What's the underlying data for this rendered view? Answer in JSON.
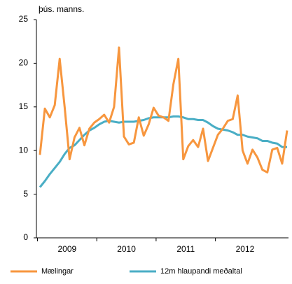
{
  "chart_data": {
    "type": "line",
    "y_label": "þús. manns.",
    "categories": [
      null,
      null,
      null,
      null,
      null,
      "2009",
      null,
      null,
      null,
      null,
      null,
      null,
      null,
      null,
      null,
      null,
      null,
      "2010",
      null,
      null,
      null,
      null,
      null,
      null,
      null,
      null,
      null,
      null,
      null,
      "2011",
      null,
      null,
      null,
      null,
      null,
      null,
      null,
      null,
      null,
      null,
      null,
      "2012",
      null,
      null,
      null,
      null,
      null,
      null,
      null,
      null,
      null
    ],
    "series": [
      {
        "name": "Mælingar",
        "color": "#f7963e",
        "values": [
          9.5,
          14.8,
          13.8,
          15.2,
          20.5,
          15,
          9,
          11.5,
          12.6,
          10.6,
          12.5,
          13.2,
          13.6,
          14.1,
          13.2,
          15,
          21.8,
          11.6,
          10.7,
          10.9,
          13.8,
          11.7,
          13,
          14.9,
          14,
          13.8,
          13.4,
          17.6,
          20.5,
          9,
          10.5,
          11.2,
          10.4,
          12.5,
          8.8,
          10.3,
          11.8,
          12.5,
          13.4,
          13.6,
          16.3,
          10,
          8.5,
          10.1,
          9.2,
          7.8,
          7.5,
          10.1,
          10.3,
          8.5,
          12.3
        ]
      },
      {
        "name": "12m hlaupandi meðaltal",
        "color": "#4aaec5",
        "values": [
          5.8,
          6.5,
          7.3,
          8,
          8.7,
          9.6,
          10.3,
          10.6,
          11.2,
          11.8,
          12.3,
          12.6,
          13,
          13.3,
          13.4,
          13.3,
          13.2,
          13.3,
          13.3,
          13.3,
          13.4,
          13.5,
          13.7,
          13.8,
          13.8,
          13.8,
          13.8,
          13.9,
          13.9,
          13.8,
          13.6,
          13.6,
          13.5,
          13.5,
          13.2,
          12.8,
          12.5,
          12.4,
          12.3,
          12.1,
          11.8,
          11.8,
          11.6,
          11.5,
          11.4,
          11.1,
          11.1,
          10.9,
          10.8,
          10.4,
          10.4
        ]
      }
    ],
    "ylim": [
      0,
      25
    ],
    "yticks": [
      0,
      5,
      10,
      15,
      20,
      25
    ],
    "grid": false,
    "legend": "bottom"
  }
}
